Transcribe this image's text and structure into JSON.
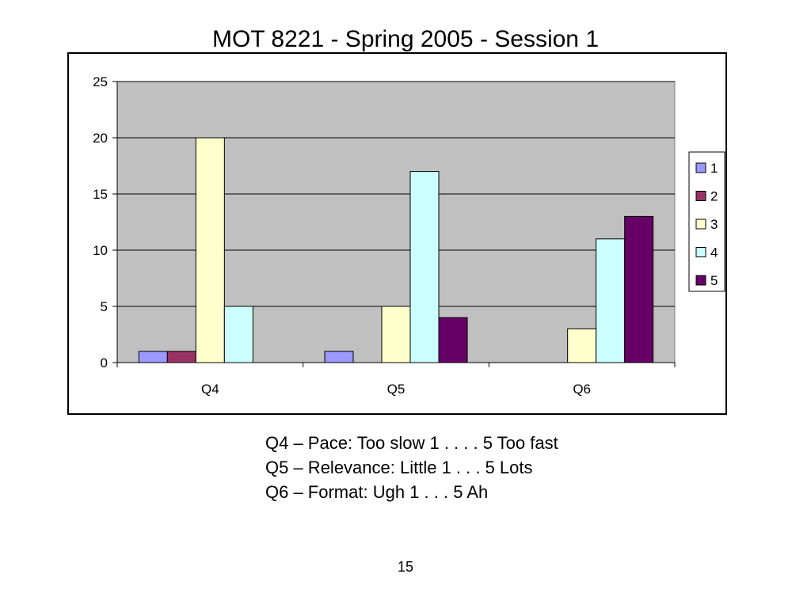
{
  "slide": {
    "title": "MOT 8221 - Spring 2005 - Session 1",
    "page_number": "15",
    "notes": [
      "Q4 – Pace: Too slow 1 . . . . 5 Too fast",
      "Q5 – Relevance: Little 1 . . . 5 Lots",
      "Q6 – Format: Ugh 1 . . . 5 Ah"
    ]
  },
  "chart_data": {
    "type": "bar",
    "title": "",
    "xlabel": "",
    "ylabel": "",
    "categories": [
      "Q4",
      "Q5",
      "Q6"
    ],
    "ylim": [
      0,
      25
    ],
    "yticks": [
      0,
      5,
      10,
      15,
      20,
      25
    ],
    "grid": true,
    "plot_background": "#c0c0c0",
    "legend_position": "right",
    "series": [
      {
        "name": "1",
        "color": "#9999ff",
        "values": [
          1,
          1,
          0
        ]
      },
      {
        "name": "2",
        "color": "#993366",
        "values": [
          1,
          0,
          0
        ]
      },
      {
        "name": "3",
        "color": "#ffffcc",
        "values": [
          20,
          5,
          3
        ]
      },
      {
        "name": "4",
        "color": "#ccffff",
        "values": [
          5,
          17,
          11
        ]
      },
      {
        "name": "5",
        "color": "#660066",
        "values": [
          0,
          4,
          13
        ]
      }
    ]
  }
}
